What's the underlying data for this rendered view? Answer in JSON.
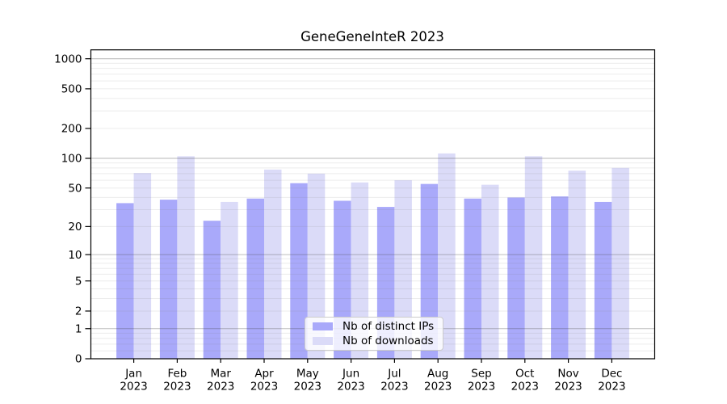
{
  "title": "GeneGeneInteR 2023",
  "chart_data": {
    "type": "bar",
    "title": "GeneGeneInteR 2023",
    "categories": [
      "Jan",
      "Feb",
      "Mar",
      "Apr",
      "May",
      "Jun",
      "Jul",
      "Aug",
      "Sep",
      "Oct",
      "Nov",
      "Dec"
    ],
    "year_label": "2023",
    "series": [
      {
        "name": "Nb of distinct IPs",
        "color": "#a9a9fa",
        "values": [
          35,
          38,
          23,
          39,
          56,
          37,
          32,
          55,
          39,
          40,
          41,
          36
        ]
      },
      {
        "name": "Nb of downloads",
        "color": "#dbdbf8",
        "values": [
          71,
          105,
          36,
          77,
          70,
          57,
          60,
          112,
          54,
          105,
          75,
          80
        ]
      }
    ],
    "yscale": "log1p",
    "ylim": [
      0,
      1220
    ],
    "yticks": [
      0,
      1,
      2,
      5,
      10,
      20,
      50,
      100,
      200,
      500,
      1000
    ],
    "major_gridlines": [
      1,
      10,
      100,
      1000
    ],
    "minor_gridlines": [
      0.2,
      0.4,
      0.6,
      0.8,
      2,
      3,
      4,
      5,
      6,
      7,
      8,
      9,
      20,
      30,
      40,
      50,
      60,
      70,
      80,
      90,
      200,
      300,
      400,
      500,
      600,
      700,
      800,
      900
    ],
    "grid": true,
    "legend_position": "bottom-center",
    "xlabel": "",
    "ylabel": "",
    "colors": {
      "frame": "#000000",
      "major_grid": "rgba(70,70,70,0.35)",
      "minor_grid": "rgba(130,130,130,0.15)",
      "text": "#000000"
    }
  }
}
